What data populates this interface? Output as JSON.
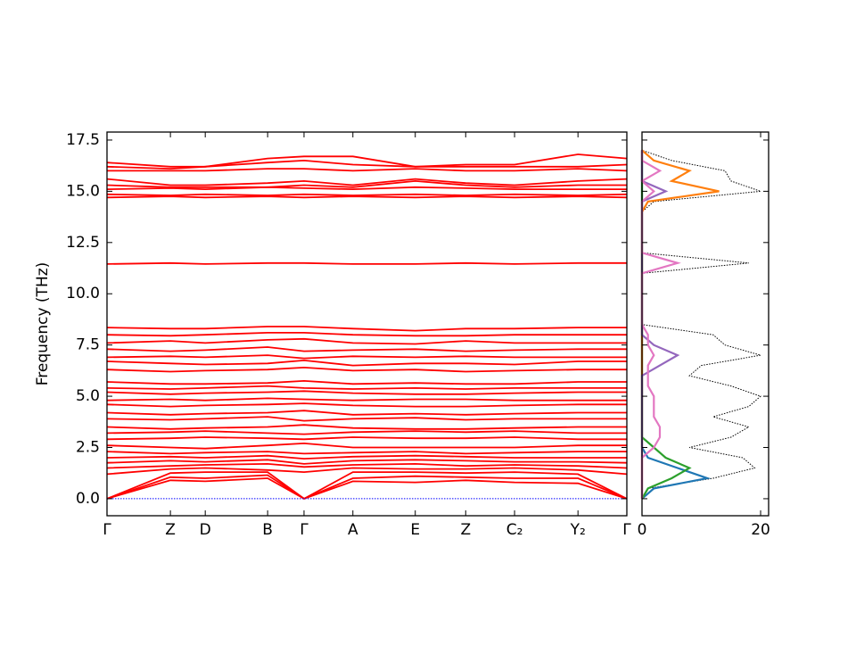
{
  "chart_data": [
    {
      "type": "line",
      "ylabel": "Frequency (THz)",
      "color": "#ff0000",
      "reference_line": {
        "value": 0,
        "color": "#0000ff"
      },
      "x": [
        0,
        0.122,
        0.189,
        0.309,
        0.379,
        0.473,
        0.593,
        0.69,
        0.784,
        0.906,
        1.0
      ],
      "xlim": [
        0,
        1.0
      ],
      "xticks": [
        {
          "value": 0,
          "label": "Γ"
        },
        {
          "value": 0.122,
          "label": "Z"
        },
        {
          "value": 0.189,
          "label": "D"
        },
        {
          "value": 0.309,
          "label": "B"
        },
        {
          "value": 0.379,
          "label": "Γ"
        },
        {
          "value": 0.473,
          "label": "A"
        },
        {
          "value": 0.593,
          "label": "E"
        },
        {
          "value": 0.69,
          "label": "Z"
        },
        {
          "value": 0.784,
          "label": "C₂"
        },
        {
          "value": 0.906,
          "label": "Y₂"
        },
        {
          "value": 1.0,
          "label": "Γ"
        }
      ],
      "ylim": [
        -0.83,
        17.89
      ],
      "yticks": [
        {
          "value": 0,
          "label": "0.0"
        },
        2.5,
        {
          "value": 5,
          "label": "5.0"
        },
        7.5,
        {
          "value": 10,
          "label": "10.0"
        },
        12.5,
        {
          "value": 15,
          "label": "15.0"
        },
        17.5
      ],
      "series": [
        {
          "values": [
            0,
            0.9,
            0.85,
            1.0,
            0,
            0.85,
            0.8,
            0.9,
            0.8,
            0.75,
            0
          ]
        },
        {
          "values": [
            0,
            1.05,
            1.0,
            1.15,
            0,
            1.0,
            1.1,
            1.05,
            1.0,
            1.0,
            0
          ]
        },
        {
          "values": [
            0,
            1.25,
            1.3,
            1.3,
            0,
            1.3,
            1.3,
            1.25,
            1.3,
            1.2,
            0
          ]
        },
        {
          "values": [
            1.2,
            1.45,
            1.5,
            1.4,
            1.3,
            1.5,
            1.45,
            1.45,
            1.5,
            1.4,
            1.2
          ]
        },
        {
          "values": [
            1.5,
            1.6,
            1.65,
            1.7,
            1.55,
            1.65,
            1.7,
            1.6,
            1.65,
            1.6,
            1.5
          ]
        },
        {
          "values": [
            1.75,
            1.85,
            1.8,
            1.9,
            1.7,
            1.85,
            1.9,
            1.85,
            1.8,
            1.8,
            1.75
          ]
        },
        {
          "values": [
            2.0,
            2.05,
            2.0,
            2.1,
            1.95,
            2.05,
            2.1,
            2.05,
            2.0,
            2.0,
            2.0
          ]
        },
        {
          "values": [
            2.3,
            2.2,
            2.25,
            2.3,
            2.2,
            2.25,
            2.3,
            2.2,
            2.25,
            2.3,
            2.3
          ]
        },
        {
          "values": [
            2.6,
            2.5,
            2.45,
            2.6,
            2.7,
            2.5,
            2.5,
            2.5,
            2.5,
            2.6,
            2.6
          ]
        },
        {
          "values": [
            2.9,
            2.95,
            3.0,
            2.95,
            2.9,
            3.0,
            2.95,
            2.95,
            3.0,
            2.9,
            2.9
          ]
        },
        {
          "values": [
            3.2,
            3.25,
            3.3,
            3.2,
            3.15,
            3.25,
            3.3,
            3.25,
            3.3,
            3.2,
            3.2
          ]
        },
        {
          "values": [
            3.5,
            3.4,
            3.45,
            3.5,
            3.6,
            3.45,
            3.4,
            3.4,
            3.45,
            3.5,
            3.5
          ]
        },
        {
          "values": [
            3.9,
            3.85,
            3.9,
            4.0,
            3.8,
            3.9,
            3.95,
            3.85,
            3.9,
            3.9,
            3.9
          ]
        },
        {
          "values": [
            4.2,
            4.1,
            4.15,
            4.2,
            4.3,
            4.1,
            4.15,
            4.1,
            4.15,
            4.2,
            4.2
          ]
        },
        {
          "values": [
            4.6,
            4.5,
            4.55,
            4.6,
            4.65,
            4.55,
            4.5,
            4.5,
            4.55,
            4.6,
            4.6
          ]
        },
        {
          "values": [
            4.8,
            4.85,
            4.8,
            4.9,
            4.85,
            4.8,
            4.85,
            4.85,
            4.8,
            4.8,
            4.8
          ]
        },
        {
          "values": [
            5.2,
            5.1,
            5.15,
            5.2,
            5.25,
            5.15,
            5.1,
            5.1,
            5.15,
            5.2,
            5.2
          ]
        },
        {
          "values": [
            5.4,
            5.35,
            5.4,
            5.5,
            5.4,
            5.35,
            5.4,
            5.35,
            5.4,
            5.4,
            5.4
          ]
        },
        {
          "values": [
            5.7,
            5.6,
            5.6,
            5.65,
            5.75,
            5.6,
            5.65,
            5.6,
            5.6,
            5.7,
            5.7
          ]
        },
        {
          "values": [
            6.3,
            6.2,
            6.25,
            6.3,
            6.4,
            6.25,
            6.3,
            6.2,
            6.25,
            6.3,
            6.3
          ]
        },
        {
          "values": [
            6.7,
            6.6,
            6.55,
            6.6,
            6.75,
            6.5,
            6.6,
            6.6,
            6.55,
            6.7,
            6.7
          ]
        },
        {
          "values": [
            6.9,
            6.95,
            6.9,
            7.0,
            6.85,
            6.95,
            6.9,
            6.95,
            6.9,
            6.9,
            6.9
          ]
        },
        {
          "values": [
            7.3,
            7.2,
            7.25,
            7.4,
            7.2,
            7.25,
            7.3,
            7.2,
            7.25,
            7.3,
            7.3
          ]
        },
        {
          "values": [
            7.6,
            7.7,
            7.6,
            7.75,
            7.8,
            7.6,
            7.55,
            7.7,
            7.6,
            7.6,
            7.6
          ]
        },
        {
          "values": [
            8.0,
            7.95,
            8.0,
            8.1,
            8.1,
            8.0,
            7.95,
            7.95,
            8.0,
            8.0,
            8.0
          ]
        },
        {
          "values": [
            8.35,
            8.3,
            8.3,
            8.4,
            8.4,
            8.3,
            8.2,
            8.3,
            8.3,
            8.35,
            8.35
          ]
        },
        {
          "values": [
            11.45,
            11.5,
            11.45,
            11.5,
            11.5,
            11.45,
            11.45,
            11.5,
            11.45,
            11.5,
            11.5
          ]
        },
        {
          "values": [
            14.7,
            14.75,
            14.7,
            14.75,
            14.7,
            14.75,
            14.7,
            14.75,
            14.7,
            14.75,
            14.7
          ]
        },
        {
          "values": [
            14.85,
            14.8,
            14.85,
            14.8,
            14.85,
            14.8,
            14.85,
            14.8,
            14.85,
            14.8,
            14.85
          ]
        },
        {
          "values": [
            15.1,
            15.15,
            15.1,
            15.2,
            15.15,
            15.1,
            15.2,
            15.15,
            15.1,
            15.1,
            15.1
          ]
        },
        {
          "values": [
            15.3,
            15.2,
            15.2,
            15.2,
            15.3,
            15.2,
            15.5,
            15.3,
            15.2,
            15.3,
            15.3
          ]
        },
        {
          "values": [
            15.6,
            15.3,
            15.3,
            15.4,
            15.5,
            15.3,
            15.6,
            15.4,
            15.3,
            15.5,
            15.6
          ]
        },
        {
          "values": [
            16.0,
            16.0,
            16.0,
            16.1,
            16.1,
            16.0,
            16.1,
            16.0,
            16.0,
            16.1,
            16.0
          ]
        },
        {
          "values": [
            16.2,
            16.1,
            16.2,
            16.4,
            16.5,
            16.3,
            16.2,
            16.2,
            16.2,
            16.2,
            16.3
          ]
        },
        {
          "values": [
            16.4,
            16.2,
            16.2,
            16.6,
            16.7,
            16.7,
            16.2,
            16.3,
            16.3,
            16.8,
            16.6
          ]
        }
      ]
    },
    {
      "type": "dos",
      "frequencies": [
        0,
        0.5,
        1,
        1.5,
        2,
        2.5,
        3,
        3.5,
        4,
        4.5,
        5,
        5.5,
        6,
        6.5,
        7,
        7.5,
        8,
        8.5,
        9,
        9.5,
        10,
        10.5,
        11,
        11.5,
        12,
        12.5,
        13,
        13.5,
        14,
        14.5,
        15,
        15.5,
        16,
        16.5,
        17
      ],
      "xlim": [
        0,
        21.35
      ],
      "xticks": [
        0,
        20
      ],
      "ylim": [
        -0.83,
        17.89
      ],
      "yticks": [
        0,
        2.5,
        5,
        7.5,
        10,
        12.5,
        15,
        17.5
      ],
      "series": [
        {
          "color": "#000000",
          "dotted": true,
          "values": [
            0,
            1,
            12,
            19,
            17,
            8,
            15,
            18,
            12,
            18,
            20,
            15,
            8,
            10,
            20,
            14,
            12,
            0,
            0,
            0,
            0,
            0,
            0,
            18,
            0,
            0,
            0,
            0,
            0,
            2,
            20,
            15,
            14,
            5,
            0
          ]
        },
        {
          "color": "#1f77b4",
          "values": [
            0,
            2,
            11,
            6,
            1,
            0,
            0,
            0,
            0,
            0,
            0,
            0,
            0,
            0,
            0,
            0,
            0,
            0,
            0,
            0,
            0,
            0,
            0,
            0,
            0,
            0,
            0,
            0,
            0,
            0,
            0,
            0,
            0,
            0,
            0
          ]
        },
        {
          "color": "#2ca02c",
          "values": [
            0,
            1,
            5,
            8,
            4,
            2,
            0,
            0,
            0,
            0,
            0,
            0,
            0,
            0,
            0,
            0,
            0,
            0,
            0,
            0,
            0,
            0,
            0,
            0,
            0,
            0,
            0,
            0,
            0,
            0,
            0,
            0,
            0,
            0,
            0
          ]
        },
        {
          "color": "#ff7f0e",
          "values": [
            0,
            0,
            0,
            0,
            0,
            0,
            0,
            0,
            0,
            0,
            0,
            0,
            0,
            0,
            0,
            0,
            0,
            0,
            0,
            0,
            0,
            0,
            0,
            0,
            0,
            0,
            0,
            0,
            0,
            1,
            13,
            5,
            8,
            2,
            0
          ]
        },
        {
          "color": "#9467bd",
          "values": [
            0,
            0,
            0,
            0,
            0,
            0,
            0,
            0,
            0,
            0,
            0,
            0,
            0,
            3,
            6,
            2,
            0,
            0,
            0,
            0,
            0,
            0,
            0,
            0,
            0,
            0,
            0,
            0,
            0,
            0,
            4,
            0,
            0,
            0,
            0
          ]
        },
        {
          "color": "#e377c2",
          "values": [
            0,
            0,
            0,
            0,
            0,
            2,
            3,
            3,
            2,
            2,
            2,
            1,
            1,
            1,
            2,
            1,
            1,
            0,
            0,
            0,
            0,
            0,
            0,
            6,
            0,
            0,
            0,
            0,
            0,
            0,
            2,
            0,
            3,
            0,
            0
          ]
        }
      ]
    }
  ]
}
